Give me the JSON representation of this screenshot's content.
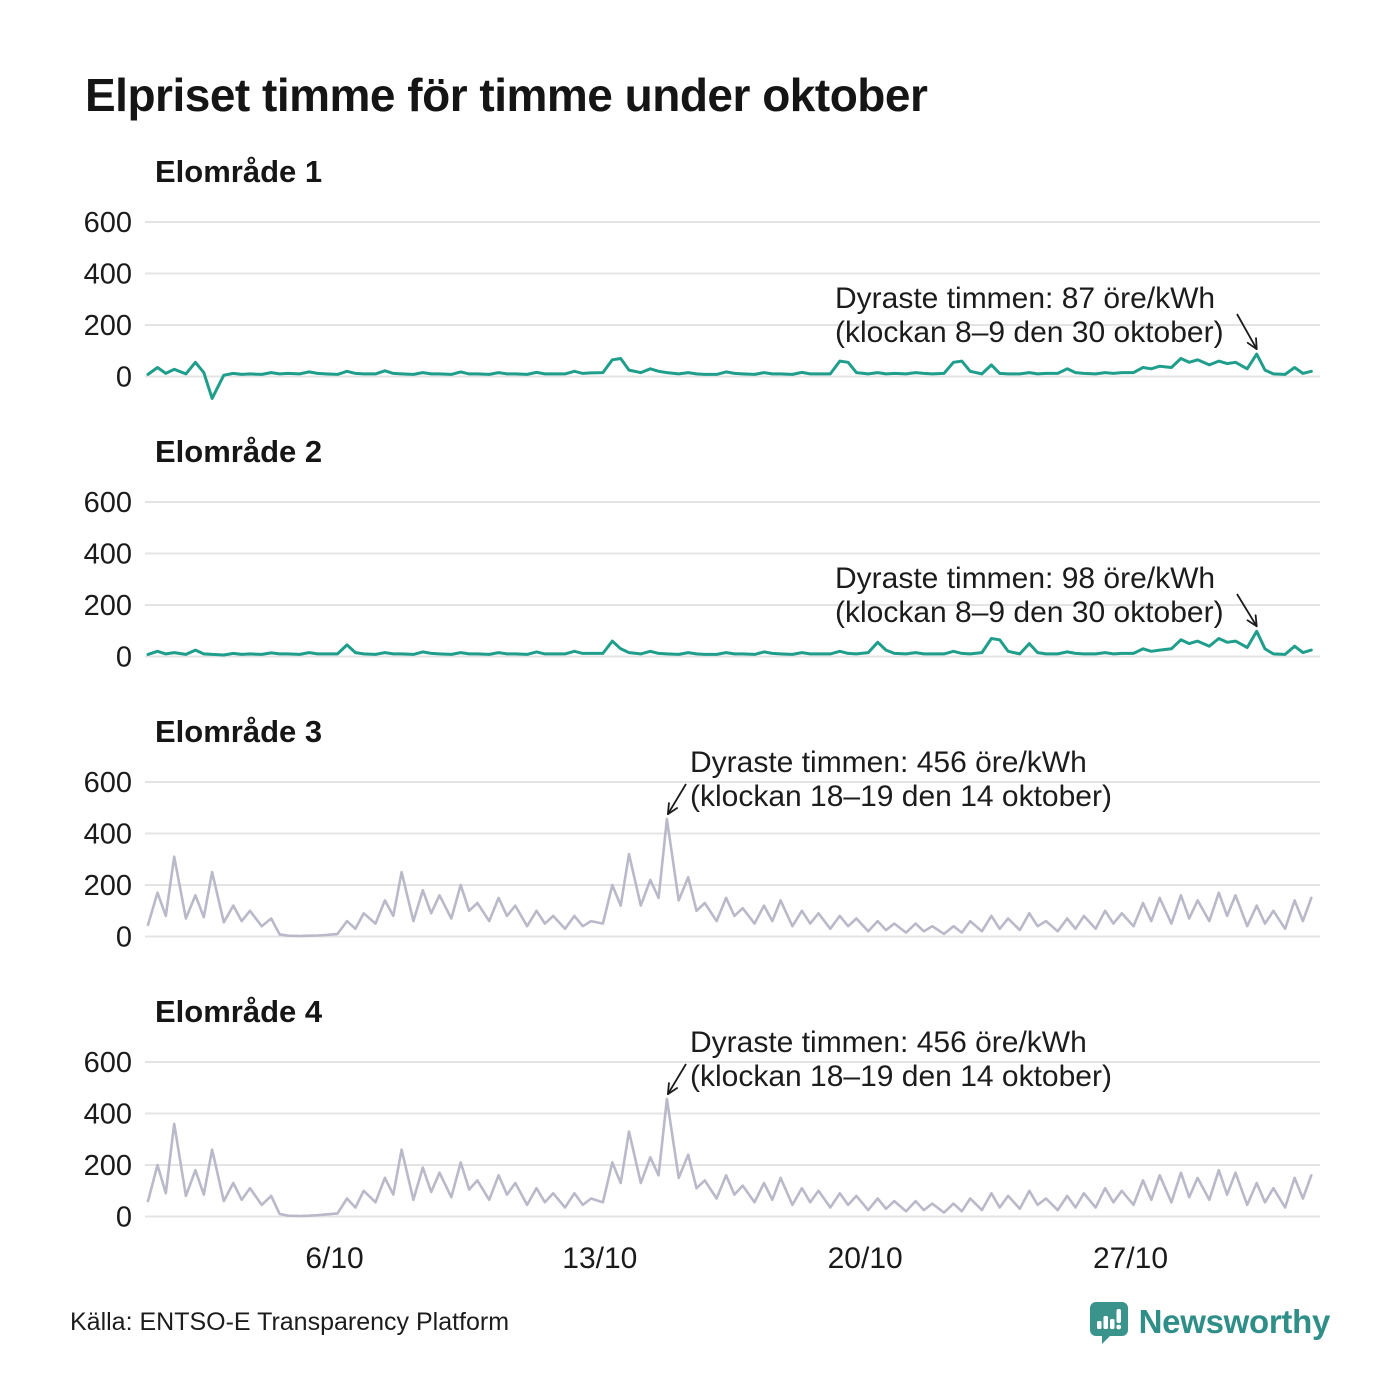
{
  "page": {
    "source": "Källa: ENTSO-E Transparency Platform",
    "brand": "Newsworthy"
  },
  "chart_data": {
    "type": "line",
    "title": "Elpriset timme för timme under oktober",
    "subtitle": "",
    "unit": "öre/kWh",
    "x_ticks": [
      "6/10",
      "13/10",
      "20/10",
      "27/10"
    ],
    "x_tick_days": [
      6,
      13,
      20,
      27
    ],
    "y_ticks": [
      600,
      400,
      200,
      0
    ],
    "ylim": [
      -100,
      700
    ],
    "days": 31,
    "samples_per_day": 4,
    "grid": true,
    "legend": "none",
    "colors": {
      "teal_line": "#209e8c",
      "lavender_line": "#b9b9c9",
      "gridline": "#e4e4e4",
      "text": "#1c1c1c",
      "brand_teal": "#2f8e87"
    },
    "panels": [
      {
        "label": "Elområde 1",
        "color": "#209e8c",
        "annotation": {
          "line1": "Dyraste timmen: 87 öre/kWh",
          "line2": "(klockan 8–9 den 30 oktober)",
          "peak_value": 87,
          "peak_index": 117,
          "side": "right"
        },
        "values": [
          8,
          35,
          12,
          28,
          10,
          55,
          15,
          -85,
          5,
          12,
          8,
          10,
          8,
          15,
          10,
          12,
          10,
          18,
          12,
          10,
          8,
          20,
          12,
          10,
          10,
          22,
          12,
          10,
          8,
          15,
          10,
          10,
          8,
          18,
          10,
          10,
          8,
          15,
          10,
          10,
          8,
          16,
          10,
          10,
          10,
          20,
          12,
          14,
          15,
          65,
          70,
          25,
          15,
          30,
          20,
          15,
          10,
          15,
          10,
          8,
          8,
          18,
          12,
          10,
          8,
          15,
          10,
          10,
          8,
          16,
          10,
          10,
          10,
          60,
          55,
          15,
          10,
          15,
          10,
          12,
          10,
          15,
          12,
          10,
          12,
          55,
          60,
          20,
          10,
          45,
          12,
          10,
          10,
          15,
          10,
          12,
          12,
          30,
          15,
          12,
          10,
          15,
          12,
          15,
          15,
          35,
          30,
          40,
          35,
          70,
          55,
          65,
          45,
          60,
          50,
          55,
          30,
          87,
          25,
          10,
          8,
          35,
          12,
          20
        ]
      },
      {
        "label": "Elområde 2",
        "color": "#209e8c",
        "annotation": {
          "line1": "Dyraste timmen: 98 öre/kWh",
          "line2": "(klockan 8–9 den 30 oktober)",
          "peak_value": 98,
          "peak_index": 117,
          "side": "right"
        },
        "values": [
          8,
          20,
          10,
          15,
          8,
          25,
          10,
          8,
          6,
          12,
          8,
          10,
          8,
          14,
          10,
          10,
          8,
          15,
          10,
          10,
          10,
          45,
          15,
          10,
          8,
          15,
          10,
          10,
          8,
          18,
          12,
          10,
          8,
          15,
          10,
          10,
          8,
          15,
          10,
          10,
          8,
          18,
          10,
          10,
          10,
          20,
          12,
          12,
          12,
          60,
          30,
          15,
          10,
          20,
          12,
          10,
          8,
          15,
          10,
          8,
          8,
          15,
          10,
          10,
          8,
          18,
          12,
          10,
          8,
          15,
          10,
          10,
          10,
          20,
          12,
          10,
          15,
          55,
          25,
          12,
          10,
          15,
          10,
          10,
          10,
          20,
          12,
          10,
          15,
          70,
          65,
          20,
          10,
          50,
          15,
          10,
          10,
          18,
          12,
          10,
          10,
          15,
          10,
          12,
          12,
          30,
          20,
          25,
          30,
          65,
          50,
          60,
          40,
          70,
          55,
          60,
          35,
          98,
          30,
          10,
          8,
          40,
          15,
          25
        ]
      },
      {
        "label": "Elområde 3",
        "color": "#b9b9c9",
        "annotation": {
          "line1": "Dyraste timmen: 456 öre/kWh",
          "line2": "(klockan 18–19 den 14 oktober)",
          "peak_value": 456,
          "peak_index": 55,
          "side": "left"
        },
        "values": [
          45,
          170,
          80,
          310,
          70,
          160,
          75,
          250,
          55,
          120,
          60,
          100,
          40,
          70,
          8,
          3,
          2,
          3,
          4,
          6,
          10,
          60,
          30,
          90,
          50,
          140,
          80,
          250,
          60,
          180,
          90,
          160,
          70,
          200,
          100,
          130,
          60,
          150,
          80,
          120,
          40,
          100,
          50,
          80,
          30,
          80,
          40,
          60,
          50,
          200,
          120,
          320,
          120,
          220,
          150,
          456,
          140,
          230,
          100,
          130,
          60,
          150,
          80,
          110,
          50,
          120,
          60,
          140,
          40,
          100,
          50,
          90,
          30,
          80,
          40,
          70,
          20,
          60,
          25,
          50,
          15,
          50,
          20,
          40,
          10,
          40,
          15,
          60,
          20,
          80,
          30,
          70,
          25,
          90,
          40,
          60,
          20,
          70,
          30,
          80,
          30,
          100,
          50,
          90,
          40,
          130,
          60,
          150,
          50,
          160,
          70,
          140,
          60,
          170,
          80,
          160,
          40,
          120,
          50,
          100,
          30,
          140,
          60,
          150
        ]
      },
      {
        "label": "Elområde 4",
        "color": "#b9b9c9",
        "annotation": {
          "line1": "Dyraste timmen: 456 öre/kWh",
          "line2": "(klockan 18–19 den 14 oktober)",
          "peak_value": 456,
          "peak_index": 55,
          "side": "left"
        },
        "values": [
          60,
          200,
          90,
          360,
          80,
          180,
          85,
          260,
          60,
          130,
          65,
          110,
          45,
          80,
          10,
          3,
          2,
          3,
          5,
          8,
          12,
          70,
          35,
          100,
          55,
          150,
          85,
          260,
          65,
          190,
          95,
          170,
          75,
          210,
          105,
          140,
          65,
          160,
          85,
          130,
          45,
          110,
          55,
          90,
          35,
          90,
          45,
          70,
          55,
          210,
          130,
          330,
          130,
          230,
          160,
          456,
          150,
          240,
          110,
          140,
          70,
          160,
          85,
          120,
          55,
          130,
          65,
          150,
          45,
          110,
          55,
          100,
          35,
          90,
          45,
          80,
          25,
          70,
          30,
          60,
          20,
          60,
          25,
          50,
          15,
          50,
          20,
          70,
          25,
          90,
          35,
          80,
          30,
          100,
          45,
          70,
          25,
          80,
          35,
          90,
          35,
          110,
          55,
          100,
          45,
          140,
          65,
          160,
          55,
          170,
          75,
          150,
          65,
          180,
          85,
          170,
          45,
          130,
          55,
          110,
          35,
          150,
          70,
          160
        ]
      }
    ]
  }
}
